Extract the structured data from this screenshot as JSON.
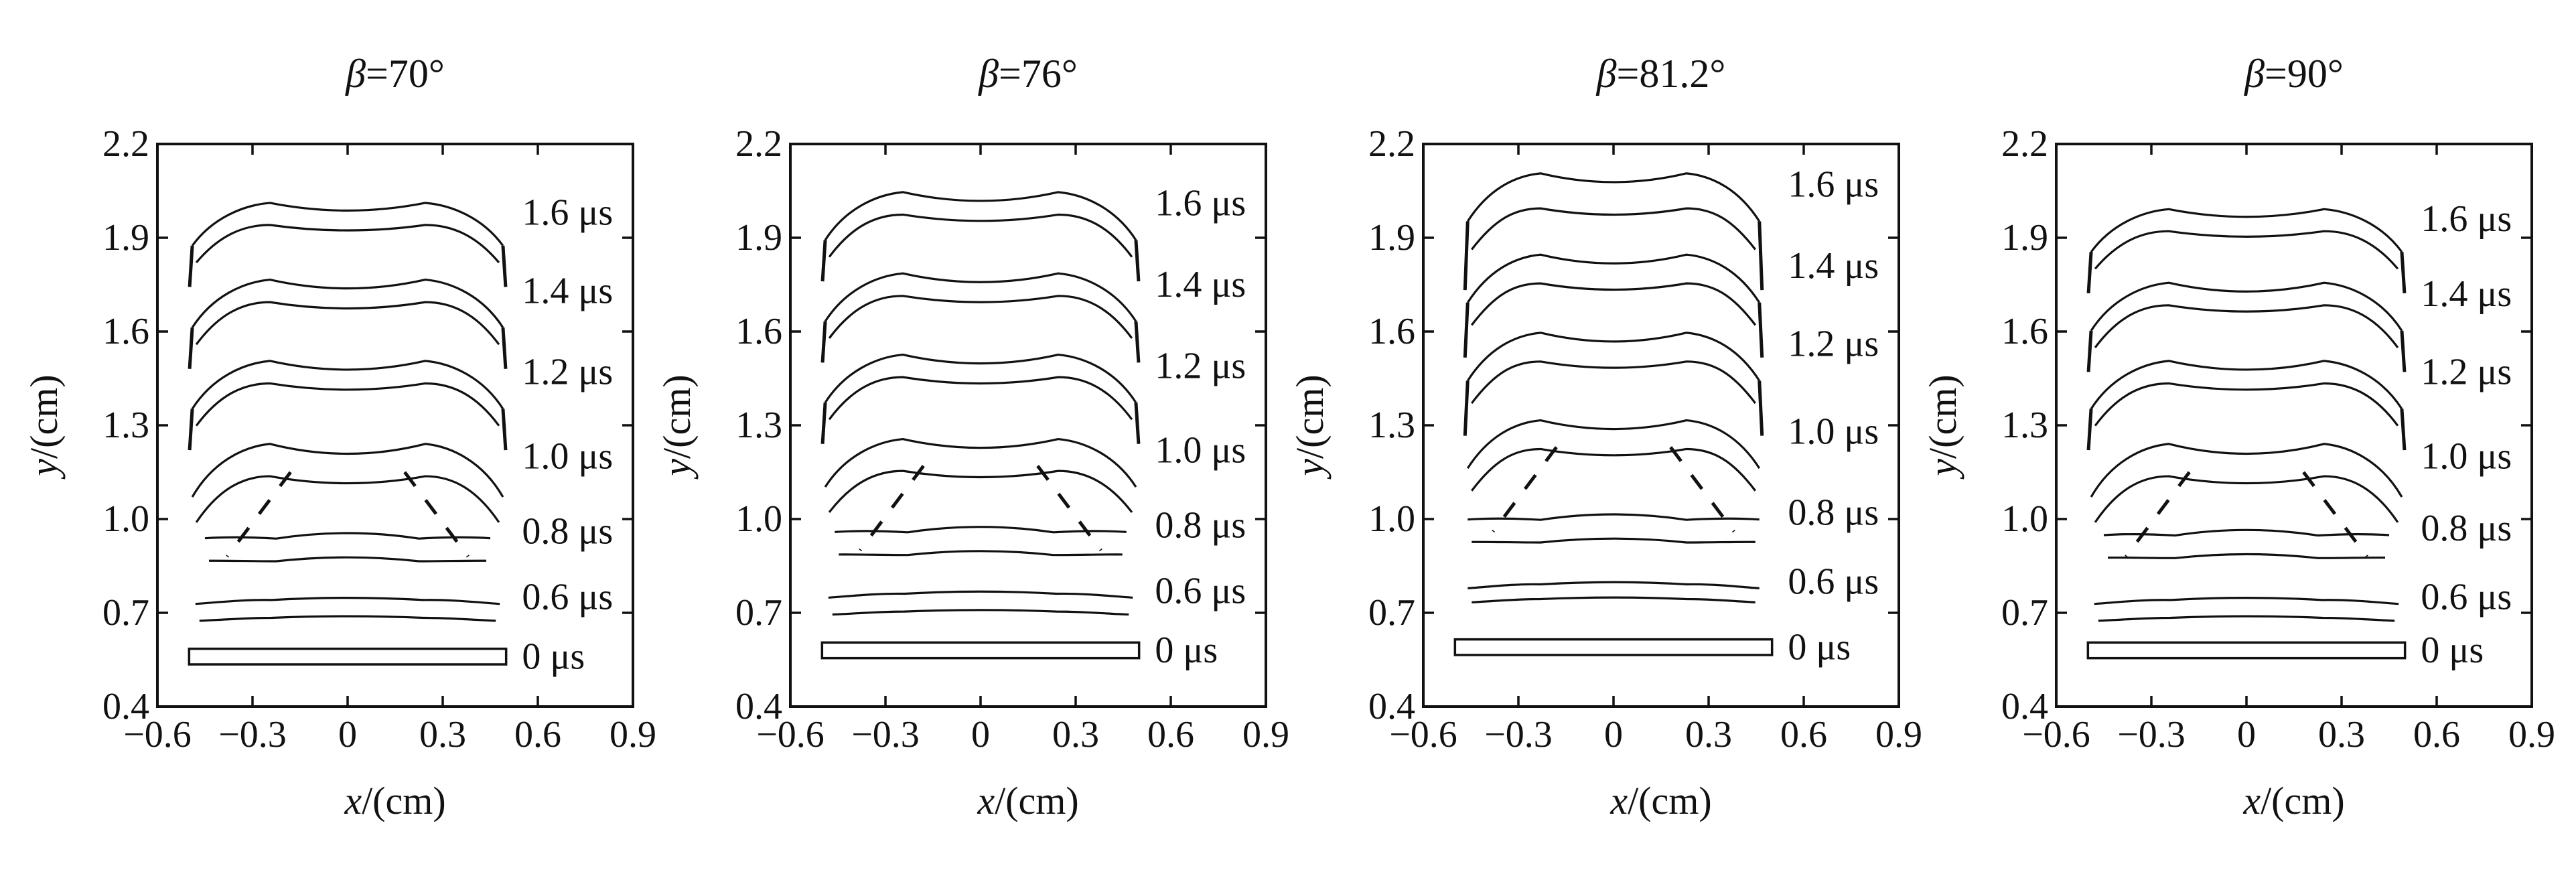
{
  "chart_data": {
    "type": "line",
    "panels": [
      {
        "title_symbol": "β",
        "title_value": "=70°",
        "xlabel_var": "x",
        "xlabel_unit": "/(cm)",
        "ylabel_var": "y",
        "ylabel_unit": "/(cm)",
        "xlim": [
          -0.6,
          0.9
        ],
        "ylim": [
          0.4,
          2.2
        ],
        "grid": false,
        "series": [
          {
            "time": "0 μs",
            "y_front": 0.56,
            "thickness": 0.05,
            "left_x": -0.5,
            "right_x": 0.5,
            "arch": 0.0
          },
          {
            "time": "0.6 μs",
            "y_front": 0.75,
            "thickness": 0.06,
            "left_x": -0.48,
            "right_x": 0.48,
            "arch": -0.02
          },
          {
            "time": "0.8 μs",
            "y_front": 0.96,
            "thickness": 0.08,
            "left_x": -0.45,
            "right_x": 0.45,
            "arch": -0.05
          },
          {
            "time": "1.0 μs",
            "y_front": 1.2,
            "thickness": 0.09,
            "left_x": -0.49,
            "right_x": 0.49,
            "arch": 0.09
          },
          {
            "time": "1.2 μs",
            "y_front": 1.47,
            "thickness": 0.06,
            "left_x": -0.49,
            "right_x": 0.49,
            "arch": 0.08
          },
          {
            "time": "1.4 μs",
            "y_front": 1.73,
            "thickness": 0.06,
            "left_x": -0.49,
            "right_x": 0.49,
            "arch": 0.08
          },
          {
            "time": "1.6 μs",
            "y_front": 1.98,
            "thickness": 0.06,
            "left_x": -0.49,
            "right_x": 0.49,
            "arch": 0.07
          }
        ]
      },
      {
        "title_symbol": "β",
        "title_value": "=76°",
        "xlabel_var": "x",
        "xlabel_unit": "/(cm)",
        "ylabel_var": "y",
        "ylabel_unit": "/(cm)",
        "xlim": [
          -0.6,
          0.9
        ],
        "ylim": [
          0.4,
          2.2
        ],
        "grid": false,
        "series": [
          {
            "time": "0 μs",
            "y_front": 0.58,
            "thickness": 0.05,
            "left_x": -0.5,
            "right_x": 0.5,
            "arch": 0.0
          },
          {
            "time": "0.6 μs",
            "y_front": 0.77,
            "thickness": 0.06,
            "left_x": -0.48,
            "right_x": 0.48,
            "arch": -0.02
          },
          {
            "time": "0.8 μs",
            "y_front": 0.98,
            "thickness": 0.08,
            "left_x": -0.46,
            "right_x": 0.46,
            "arch": -0.05
          },
          {
            "time": "1.0 μs",
            "y_front": 1.22,
            "thickness": 0.09,
            "left_x": -0.49,
            "right_x": 0.49,
            "arch": 0.08
          },
          {
            "time": "1.2 μs",
            "y_front": 1.49,
            "thickness": 0.06,
            "left_x": -0.49,
            "right_x": 0.49,
            "arch": 0.08
          },
          {
            "time": "1.4 μs",
            "y_front": 1.75,
            "thickness": 0.06,
            "left_x": -0.49,
            "right_x": 0.49,
            "arch": 0.08
          },
          {
            "time": "1.6 μs",
            "y_front": 2.01,
            "thickness": 0.06,
            "left_x": -0.49,
            "right_x": 0.49,
            "arch": 0.08
          }
        ]
      },
      {
        "title_symbol": "β",
        "title_value": "=81.2°",
        "xlabel_var": "x",
        "xlabel_unit": "/(cm)",
        "ylabel_var": "y",
        "ylabel_unit": "/(cm)",
        "xlim": [
          -0.6,
          0.9
        ],
        "ylim": [
          0.4,
          2.2
        ],
        "grid": false,
        "series": [
          {
            "time": "0 μs",
            "y_front": 0.59,
            "thickness": 0.05,
            "left_x": -0.5,
            "right_x": 0.5,
            "arch": 0.0
          },
          {
            "time": "0.6 μs",
            "y_front": 0.8,
            "thickness": 0.05,
            "left_x": -0.46,
            "right_x": 0.46,
            "arch": -0.02
          },
          {
            "time": "0.8 μs",
            "y_front": 1.02,
            "thickness": 0.08,
            "left_x": -0.46,
            "right_x": 0.46,
            "arch": -0.05
          },
          {
            "time": "1.0 μs",
            "y_front": 1.28,
            "thickness": 0.08,
            "left_x": -0.46,
            "right_x": 0.46,
            "arch": 0.08
          },
          {
            "time": "1.2 μs",
            "y_front": 1.56,
            "thickness": 0.08,
            "left_x": -0.46,
            "right_x": 0.46,
            "arch": 0.08
          },
          {
            "time": "1.4 μs",
            "y_front": 1.81,
            "thickness": 0.08,
            "left_x": -0.46,
            "right_x": 0.46,
            "arch": 0.08
          },
          {
            "time": "1.6 μs",
            "y_front": 2.07,
            "thickness": 0.1,
            "left_x": -0.46,
            "right_x": 0.46,
            "arch": 0.08
          }
        ]
      },
      {
        "title_symbol": "β",
        "title_value": "=90°",
        "xlabel_var": "x",
        "xlabel_unit": "/(cm)",
        "ylabel_var": "y",
        "ylabel_unit": "/(cm)",
        "xlim": [
          -0.6,
          0.9
        ],
        "ylim": [
          0.4,
          2.2
        ],
        "grid": false,
        "series": [
          {
            "time": "0 μs",
            "y_front": 0.58,
            "thickness": 0.05,
            "left_x": -0.5,
            "right_x": 0.5,
            "arch": 0.0
          },
          {
            "time": "0.6 μs",
            "y_front": 0.75,
            "thickness": 0.06,
            "left_x": -0.48,
            "right_x": 0.48,
            "arch": -0.02
          },
          {
            "time": "0.8 μs",
            "y_front": 0.97,
            "thickness": 0.08,
            "left_x": -0.45,
            "right_x": 0.45,
            "arch": -0.05
          },
          {
            "time": "1.0 μs",
            "y_front": 1.2,
            "thickness": 0.09,
            "left_x": -0.49,
            "right_x": 0.49,
            "arch": 0.09
          },
          {
            "time": "1.2 μs",
            "y_front": 1.47,
            "thickness": 0.06,
            "left_x": -0.49,
            "right_x": 0.49,
            "arch": 0.08
          },
          {
            "time": "1.4 μs",
            "y_front": 1.72,
            "thickness": 0.06,
            "left_x": -0.49,
            "right_x": 0.49,
            "arch": 0.08
          },
          {
            "time": "1.6 μs",
            "y_front": 1.96,
            "thickness": 0.06,
            "left_x": -0.49,
            "right_x": 0.49,
            "arch": 0.07
          }
        ]
      }
    ]
  }
}
